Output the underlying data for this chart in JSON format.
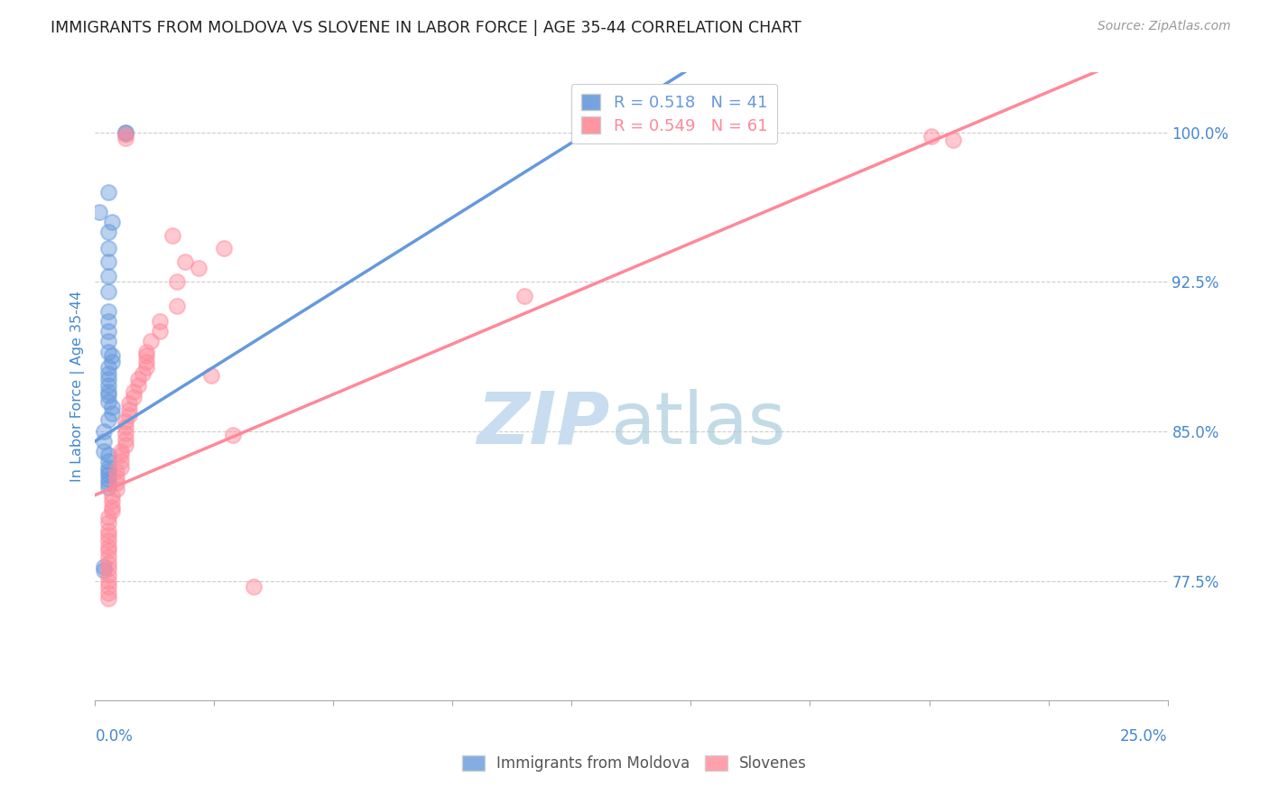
{
  "title": "IMMIGRANTS FROM MOLDOVA VS SLOVENE IN LABOR FORCE | AGE 35-44 CORRELATION CHART",
  "source": "Source: ZipAtlas.com",
  "ylabel": "In Labor Force | Age 35-44",
  "xmin": 0.0,
  "xmax": 0.25,
  "ymin": 0.715,
  "ymax": 1.03,
  "yticks": [
    0.775,
    0.85,
    0.925,
    1.0
  ],
  "ytick_labels": [
    "77.5%",
    "85.0%",
    "92.5%",
    "100.0%"
  ],
  "blue_R": 0.518,
  "blue_N": 41,
  "pink_R": 0.549,
  "pink_N": 61,
  "blue_color": "#6699DD",
  "pink_color": "#FF8899",
  "blue_label": "Immigrants from Moldova",
  "pink_label": "Slovenes",
  "title_color": "#222222",
  "axis_label_color": "#4488CC",
  "grid_color": "#CCCCCC",
  "blue_line_x0": 0.0,
  "blue_line_y0": 0.845,
  "blue_line_x1": 0.115,
  "blue_line_y1": 1.0,
  "pink_line_x0": 0.0,
  "pink_line_y0": 0.818,
  "pink_line_x1": 0.2,
  "pink_line_y1": 1.0,
  "blue_scatter_x": [
    0.001,
    0.007,
    0.007,
    0.003,
    0.004,
    0.003,
    0.003,
    0.003,
    0.003,
    0.003,
    0.003,
    0.003,
    0.003,
    0.003,
    0.003,
    0.004,
    0.004,
    0.003,
    0.003,
    0.003,
    0.003,
    0.003,
    0.003,
    0.003,
    0.004,
    0.004,
    0.003,
    0.002,
    0.002,
    0.002,
    0.003,
    0.003,
    0.003,
    0.003,
    0.003,
    0.003,
    0.003,
    0.003,
    0.002,
    0.002,
    0.115
  ],
  "blue_scatter_y": [
    0.96,
    1.0,
    1.0,
    0.97,
    0.955,
    0.95,
    0.942,
    0.935,
    0.928,
    0.92,
    0.91,
    0.905,
    0.9,
    0.895,
    0.89,
    0.888,
    0.885,
    0.882,
    0.879,
    0.876,
    0.873,
    0.87,
    0.868,
    0.865,
    0.862,
    0.859,
    0.856,
    0.85,
    0.845,
    0.84,
    0.838,
    0.835,
    0.832,
    0.83,
    0.828,
    0.826,
    0.824,
    0.822,
    0.782,
    0.78,
    1.0
  ],
  "pink_scatter_x": [
    0.007,
    0.007,
    0.018,
    0.03,
    0.021,
    0.024,
    0.019,
    0.019,
    0.015,
    0.015,
    0.013,
    0.012,
    0.012,
    0.012,
    0.012,
    0.011,
    0.01,
    0.01,
    0.009,
    0.009,
    0.008,
    0.008,
    0.008,
    0.007,
    0.007,
    0.007,
    0.007,
    0.007,
    0.006,
    0.006,
    0.006,
    0.006,
    0.005,
    0.005,
    0.005,
    0.005,
    0.004,
    0.004,
    0.004,
    0.004,
    0.003,
    0.003,
    0.003,
    0.003,
    0.003,
    0.003,
    0.003,
    0.003,
    0.003,
    0.003,
    0.003,
    0.003,
    0.003,
    0.003,
    0.003,
    0.027,
    0.032,
    0.037,
    0.1,
    0.195,
    0.2
  ],
  "pink_scatter_y": [
    0.999,
    0.997,
    0.948,
    0.942,
    0.935,
    0.932,
    0.925,
    0.913,
    0.905,
    0.9,
    0.895,
    0.89,
    0.888,
    0.885,
    0.882,
    0.879,
    0.876,
    0.873,
    0.87,
    0.867,
    0.864,
    0.861,
    0.858,
    0.855,
    0.852,
    0.849,
    0.846,
    0.843,
    0.84,
    0.838,
    0.835,
    0.832,
    0.83,
    0.827,
    0.824,
    0.821,
    0.818,
    0.815,
    0.812,
    0.81,
    0.807,
    0.804,
    0.8,
    0.798,
    0.795,
    0.792,
    0.79,
    0.787,
    0.784,
    0.781,
    0.778,
    0.775,
    0.772,
    0.769,
    0.766,
    0.878,
    0.848,
    0.772,
    0.918,
    0.998,
    0.996
  ]
}
